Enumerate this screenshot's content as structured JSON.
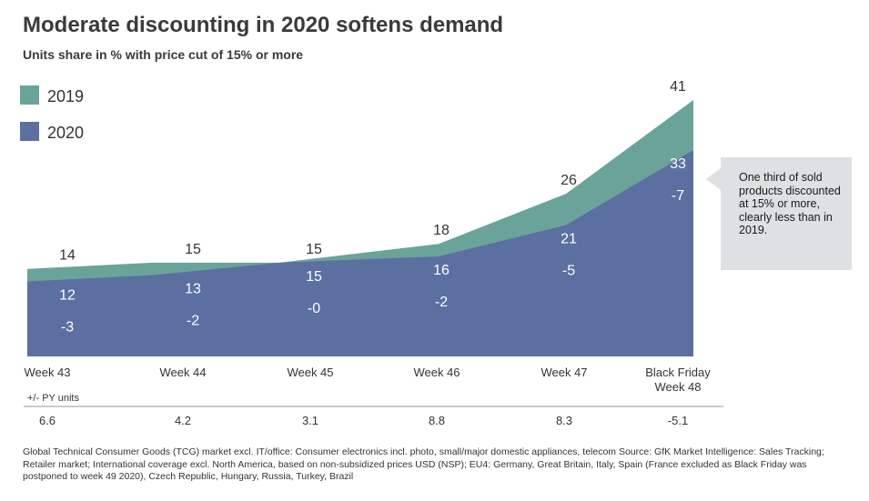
{
  "chart_data": {
    "type": "area",
    "title": "Moderate discounting in 2020 softens demand",
    "subtitle": "Units share in % with price cut of 15% or more",
    "categories": [
      "Week 43",
      "Week 44",
      "Week 45",
      "Week 46",
      "Week 47",
      "Black Friday Week 48"
    ],
    "category_lines": [
      [
        "Week 43"
      ],
      [
        "Week 44"
      ],
      [
        "Week 45"
      ],
      [
        "Week 46"
      ],
      [
        "Week 47"
      ],
      [
        "Black Friday",
        "Week 48"
      ]
    ],
    "series": [
      {
        "name": "2019",
        "color": "#6aa39a",
        "values": [
          14,
          15,
          15,
          18,
          26,
          41
        ]
      },
      {
        "name": "2020",
        "color": "#5b6fa1",
        "values": [
          12,
          13,
          15,
          16,
          21,
          33
        ]
      }
    ],
    "change_labels": [
      "-3",
      "-2",
      "-0",
      "-2",
      "-5",
      "-7"
    ],
    "py_units_label": "+/- PY units",
    "py_units_values": [
      "6.6",
      "4.2",
      "3.1",
      "8.8",
      "8.3",
      "-5.1"
    ],
    "ylim": [
      0,
      41
    ],
    "legend_position": "top-left",
    "grid": false,
    "annotation": "One third of sold products discounted at 15% or more, clearly less than in 2019."
  },
  "footnote": "Global Technical Consumer Goods (TCG) market excl. IT/office: Consumer electronics incl. photo, small/major domestic appliances, telecom  Source: GfK Market Intelligence: Sales Tracking; Retailer market; International coverage excl. North America, based on non-subsidized prices USD (NSP);   EU4: Germany, Great Britain, Italy, Spain (France excluded as Black Friday was postponed to week 49 2020), Czech Republic, Hungary, Russia, Turkey, Brazil",
  "colors": {
    "axis": "#999999",
    "text": "#333333",
    "annotation_bg": "#dfe0e2"
  }
}
